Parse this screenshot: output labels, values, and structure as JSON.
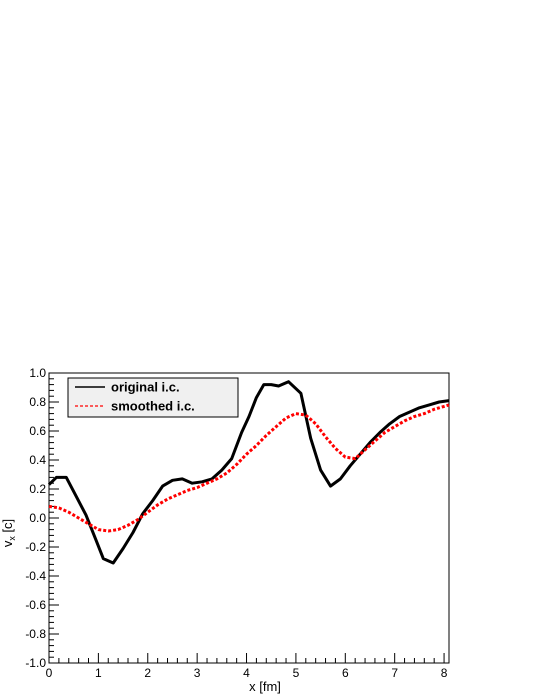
{
  "chart_data": {
    "type": "line",
    "xlabel": "x [fm]",
    "ylabel": {
      "main": "v",
      "sub": "x",
      "unit": " [c]"
    },
    "xlim": [
      0,
      8.1
    ],
    "ylim": [
      -1.0,
      1.0
    ],
    "x_ticks": [
      0,
      1,
      2,
      3,
      4,
      5,
      6,
      7,
      8
    ],
    "x_tick_labels": [
      "0",
      "1",
      "2",
      "3",
      "4",
      "5",
      "6",
      "7",
      "8"
    ],
    "y_ticks": [
      -1.0,
      -0.8,
      -0.6,
      -0.4,
      -0.2,
      0.0,
      0.2,
      0.4,
      0.6,
      0.8,
      1.0
    ],
    "y_tick_labels": [
      "-1.0",
      "-0.8",
      "-0.6",
      "-0.4",
      "-0.2",
      "0.0",
      "0.2",
      "0.4",
      "0.6",
      "0.8",
      "1.0"
    ],
    "grid": false,
    "legend_position": "top-left",
    "series": [
      {
        "name": "original i.c.",
        "color": "#000000",
        "style": "solid",
        "x": [
          0.0,
          0.15,
          0.35,
          0.55,
          0.75,
          0.95,
          1.1,
          1.3,
          1.5,
          1.7,
          1.9,
          2.1,
          2.3,
          2.5,
          2.7,
          2.9,
          3.1,
          3.3,
          3.5,
          3.7,
          3.9,
          4.05,
          4.2,
          4.35,
          4.5,
          4.65,
          4.85,
          5.1,
          5.3,
          5.5,
          5.7,
          5.9,
          6.1,
          6.3,
          6.5,
          6.7,
          6.9,
          7.1,
          7.3,
          7.5,
          7.7,
          7.9,
          8.1
        ],
        "y": [
          0.23,
          0.28,
          0.28,
          0.15,
          0.02,
          -0.15,
          -0.28,
          -0.31,
          -0.21,
          -0.1,
          0.03,
          0.12,
          0.22,
          0.26,
          0.27,
          0.24,
          0.25,
          0.27,
          0.33,
          0.41,
          0.59,
          0.7,
          0.83,
          0.92,
          0.92,
          0.91,
          0.94,
          0.86,
          0.55,
          0.33,
          0.22,
          0.27,
          0.36,
          0.44,
          0.52,
          0.59,
          0.65,
          0.7,
          0.73,
          0.76,
          0.78,
          0.8,
          0.81
        ]
      },
      {
        "name": "smoothed i.c.",
        "color": "#ff0000",
        "style": "dashed",
        "x": [
          0.0,
          0.2,
          0.4,
          0.6,
          0.8,
          1.0,
          1.2,
          1.4,
          1.6,
          1.8,
          2.0,
          2.2,
          2.4,
          2.6,
          2.8,
          3.0,
          3.2,
          3.4,
          3.6,
          3.8,
          4.0,
          4.2,
          4.4,
          4.6,
          4.8,
          5.0,
          5.2,
          5.4,
          5.6,
          5.8,
          6.0,
          6.2,
          6.4,
          6.6,
          6.8,
          7.0,
          7.2,
          7.4,
          7.6,
          7.8,
          8.0,
          8.1
        ],
        "y": [
          0.08,
          0.07,
          0.04,
          0.0,
          -0.04,
          -0.08,
          -0.09,
          -0.08,
          -0.05,
          -0.01,
          0.04,
          0.09,
          0.13,
          0.16,
          0.19,
          0.21,
          0.24,
          0.27,
          0.31,
          0.37,
          0.44,
          0.5,
          0.57,
          0.63,
          0.69,
          0.72,
          0.71,
          0.65,
          0.56,
          0.48,
          0.42,
          0.41,
          0.47,
          0.53,
          0.59,
          0.63,
          0.67,
          0.7,
          0.72,
          0.75,
          0.77,
          0.78
        ]
      }
    ]
  }
}
